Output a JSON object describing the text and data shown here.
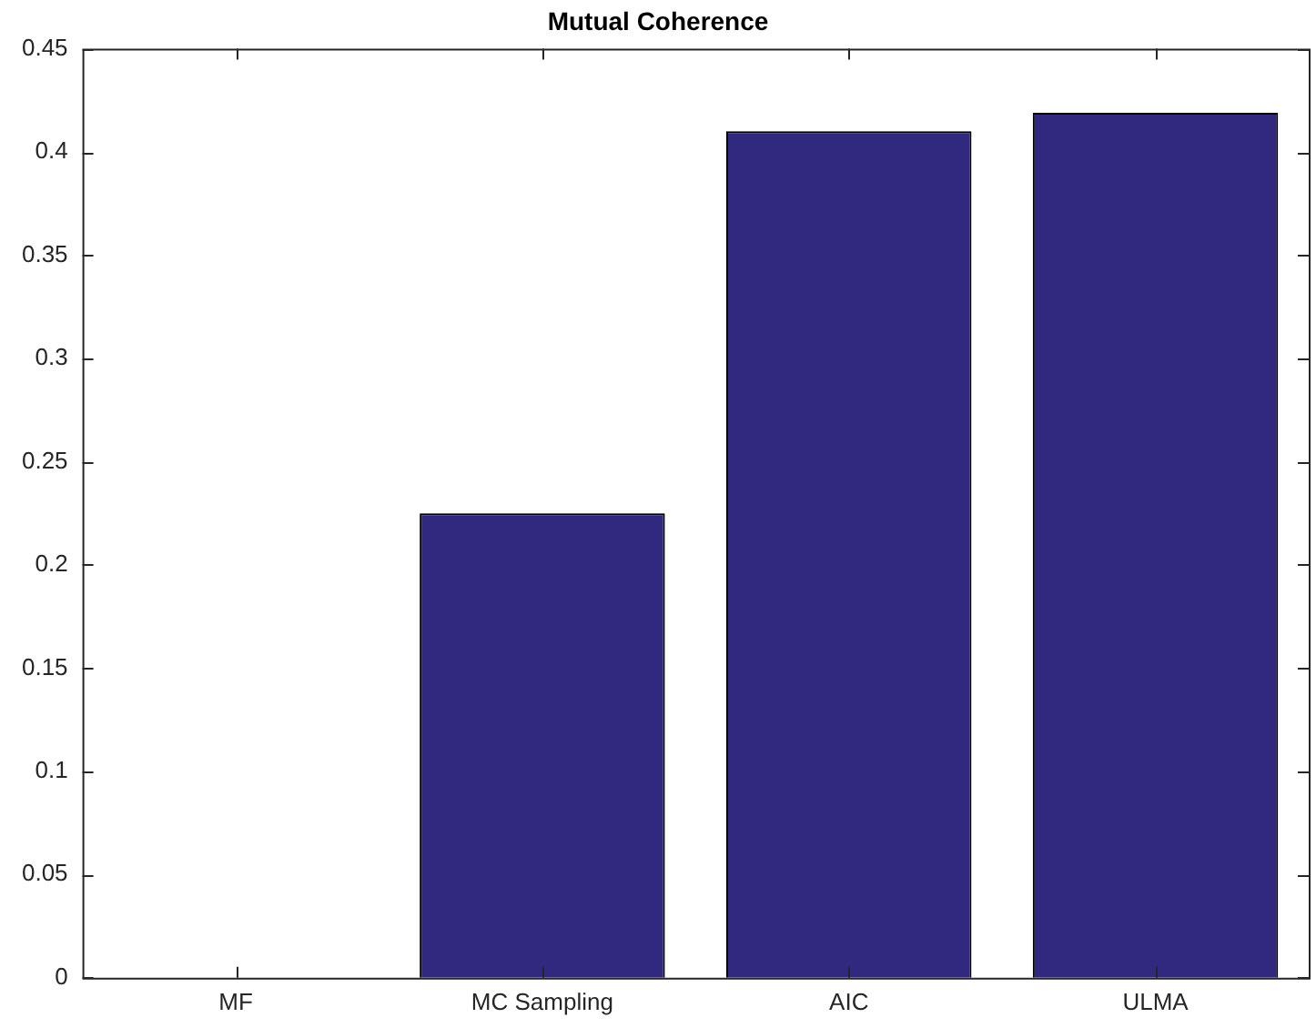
{
  "chart_data": {
    "type": "bar",
    "title": "Mutual Coherence",
    "categories": [
      "MF",
      "MC Sampling",
      "AIC",
      "ULMA"
    ],
    "values": [
      0,
      0.225,
      0.41,
      0.419
    ],
    "color": "#31297f",
    "ylim": [
      0,
      0.45
    ],
    "yticks": [
      0,
      0.05,
      0.1,
      0.15,
      0.2,
      0.25,
      0.3,
      0.35,
      0.4,
      0.45
    ],
    "grid": false,
    "legend": false
  }
}
